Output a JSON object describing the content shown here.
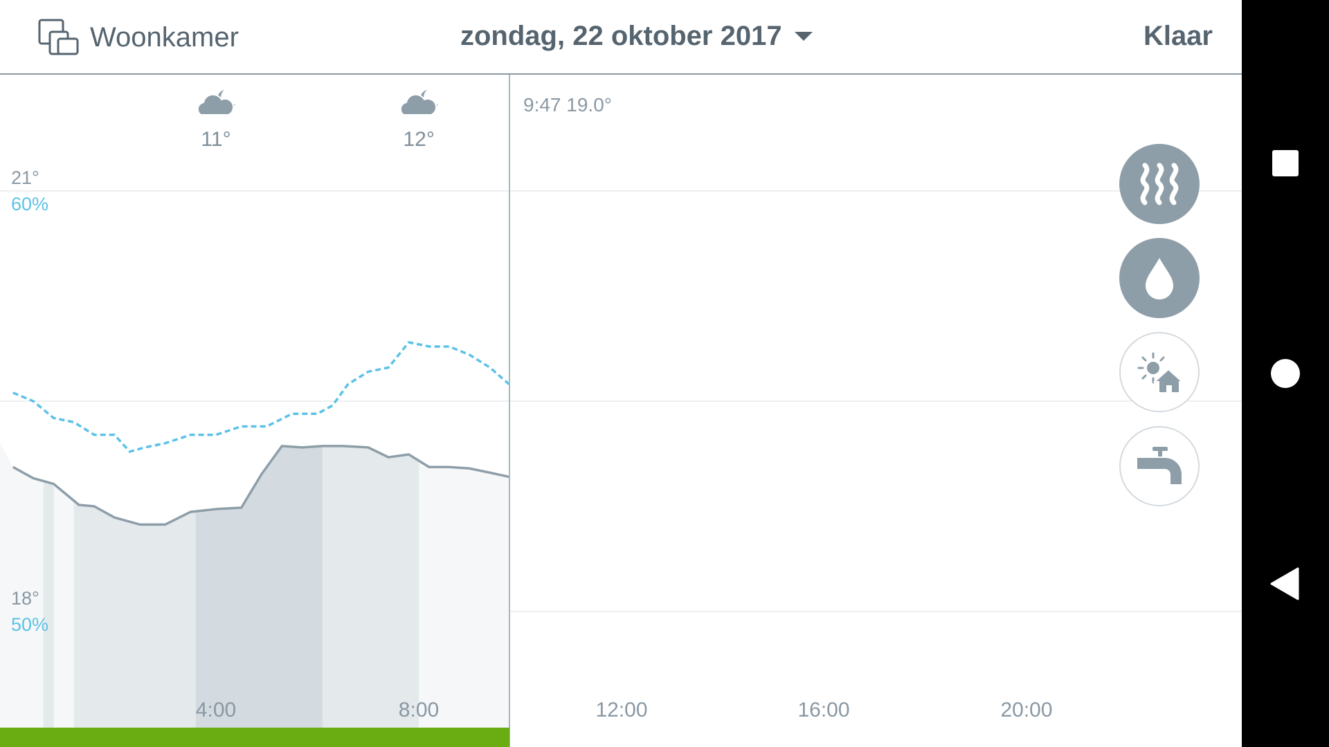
{
  "header": {
    "room_label": "Woonkamer",
    "date_label": "zondag, 22 oktober 2017",
    "done_label": "Klaar"
  },
  "weather": [
    {
      "icon": "cloud-moon-icon",
      "temp": "11°",
      "hour": 4
    },
    {
      "icon": "cloud-moon-icon",
      "temp": "12°",
      "hour": 8
    }
  ],
  "now_readout": "9:47 19.0°",
  "y_axis": {
    "top_temp": "21°",
    "top_humidity": "60%",
    "bottom_temp": "18°",
    "bottom_humidity": "50%"
  },
  "x_ticks": [
    "4:00",
    "8:00",
    "12:00",
    "16:00",
    "20:00"
  ],
  "mode_buttons": [
    {
      "name": "heating-mode-button",
      "icon": "heat-waves-icon",
      "active": true
    },
    {
      "name": "humidity-mode-button",
      "icon": "water-drop-icon",
      "active": true
    },
    {
      "name": "outdoor-mode-button",
      "icon": "sun-house-icon",
      "active": false
    },
    {
      "name": "hot-water-mode-button",
      "icon": "tap-icon",
      "active": false
    }
  ],
  "colors": {
    "text": "#55646f",
    "axis": "#8a98a3",
    "temperature_line": "#8e9ea9",
    "humidity_line": "#5bc2e7",
    "heating_bar": "#6aad12"
  },
  "chart_data": {
    "type": "line",
    "x_unit": "hours",
    "xlim": [
      0,
      24
    ],
    "ylim_temp": [
      18,
      21
    ],
    "ylim_humidity": [
      50,
      60
    ],
    "current_time": 9.78,
    "temperature": {
      "x": [
        0,
        0.4,
        0.8,
        1.0,
        1.3,
        1.6,
        2.0,
        2.5,
        3.0,
        3.5,
        4.0,
        4.5,
        4.9,
        5.3,
        5.7,
        6.1,
        6.5,
        7.0,
        7.4,
        7.8,
        8.2,
        8.6,
        9.0,
        9.4,
        9.78
      ],
      "values": [
        19.03,
        18.95,
        18.91,
        18.85,
        18.76,
        18.75,
        18.67,
        18.62,
        18.62,
        18.71,
        18.73,
        18.74,
        18.98,
        19.18,
        19.17,
        19.18,
        19.18,
        19.17,
        19.1,
        19.12,
        19.03,
        19.03,
        19.02,
        18.99,
        18.96
      ]
    },
    "humidity": {
      "x": [
        0,
        0.4,
        0.8,
        1.2,
        1.6,
        2.0,
        2.3,
        2.6,
        3.0,
        3.5,
        4.0,
        4.5,
        5.0,
        5.5,
        6.0,
        6.3,
        6.6,
        7.0,
        7.4,
        7.8,
        8.2,
        8.6,
        9.0,
        9.4,
        9.78
      ],
      "values": [
        55.2,
        55.0,
        54.6,
        54.5,
        54.2,
        54.2,
        53.8,
        53.9,
        54.0,
        54.2,
        54.2,
        54.4,
        54.4,
        54.7,
        54.7,
        54.9,
        55.4,
        55.7,
        55.8,
        56.4,
        56.3,
        56.3,
        56.1,
        55.8,
        55.4
      ]
    },
    "occupancy_bands": [
      {
        "from": 0.6,
        "to": 0.8,
        "level": 1
      },
      {
        "from": 1.2,
        "to": 3.6,
        "level": 1
      },
      {
        "from": 3.6,
        "to": 6.1,
        "level": 2
      },
      {
        "from": 6.1,
        "to": 8.0,
        "level": 1
      }
    ],
    "heating_on": [
      {
        "from": 0,
        "to": 9.78
      }
    ]
  }
}
